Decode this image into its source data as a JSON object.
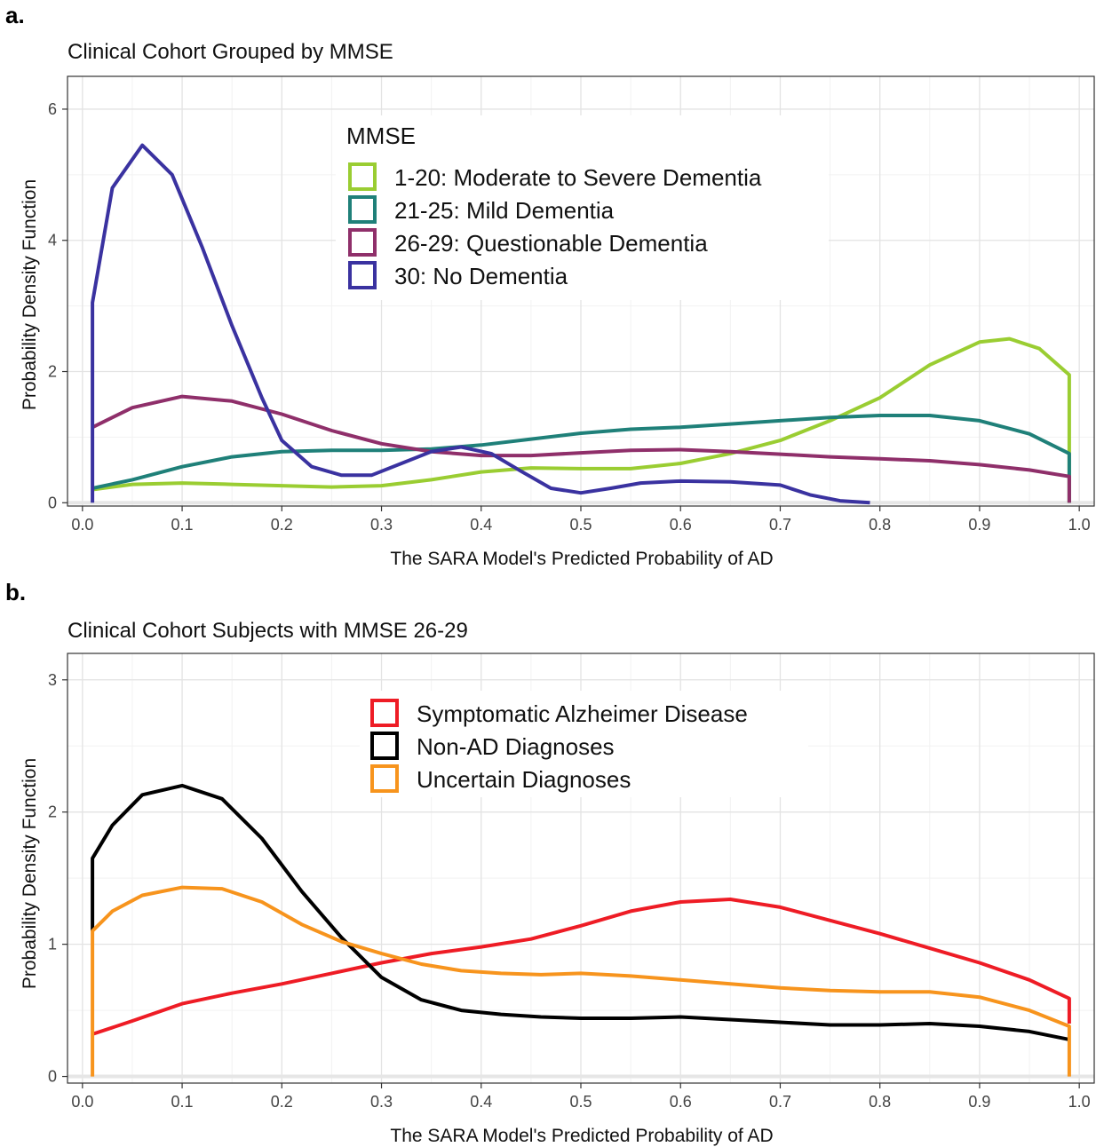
{
  "panels": [
    {
      "letter": "a.",
      "chart_data": {
        "type": "line",
        "title": "Clinical Cohort Grouped by MMSE",
        "xlabel": "The SARA Model's Predicted Probability of AD",
        "ylabel": "Probability Density Function",
        "xlim": [
          0.0,
          1.0
        ],
        "ylim": [
          0,
          6.5
        ],
        "x_ticks": [
          "0.0",
          "0.1",
          "0.2",
          "0.3",
          "0.4",
          "0.5",
          "0.6",
          "0.7",
          "0.8",
          "0.9",
          "1.0"
        ],
        "y_ticks": [
          "0",
          "2",
          "4",
          "6"
        ],
        "grid": true,
        "legend_title": "MMSE",
        "legend_position": "top-center",
        "series": [
          {
            "name": "1-20: Moderate to Severe Dementia",
            "color": "#9acd32",
            "x": [
              0.01,
              0.05,
              0.1,
              0.15,
              0.2,
              0.25,
              0.3,
              0.35,
              0.4,
              0.45,
              0.5,
              0.55,
              0.6,
              0.65,
              0.7,
              0.75,
              0.8,
              0.85,
              0.9,
              0.93,
              0.96,
              0.99,
              0.99
            ],
            "y": [
              0.2,
              0.28,
              0.3,
              0.28,
              0.26,
              0.24,
              0.26,
              0.35,
              0.47,
              0.53,
              0.52,
              0.52,
              0.6,
              0.75,
              0.95,
              1.25,
              1.6,
              2.1,
              2.45,
              2.5,
              2.35,
              1.95,
              0
            ]
          },
          {
            "name": "21-25: Mild Dementia",
            "color": "#1f8079",
            "x": [
              0.01,
              0.05,
              0.1,
              0.15,
              0.2,
              0.25,
              0.3,
              0.35,
              0.4,
              0.45,
              0.5,
              0.55,
              0.6,
              0.65,
              0.7,
              0.75,
              0.8,
              0.85,
              0.9,
              0.95,
              0.99,
              0.99
            ],
            "y": [
              0.22,
              0.35,
              0.55,
              0.7,
              0.78,
              0.8,
              0.8,
              0.82,
              0.88,
              0.97,
              1.06,
              1.12,
              1.15,
              1.2,
              1.25,
              1.3,
              1.33,
              1.33,
              1.25,
              1.05,
              0.75,
              0
            ]
          },
          {
            "name": "26-29: Questionable Dementia",
            "color": "#8f2f6a",
            "x": [
              0.01,
              0.05,
              0.1,
              0.15,
              0.2,
              0.25,
              0.3,
              0.35,
              0.4,
              0.45,
              0.5,
              0.55,
              0.6,
              0.65,
              0.7,
              0.75,
              0.8,
              0.85,
              0.9,
              0.95,
              0.99,
              0.99
            ],
            "y": [
              1.15,
              1.45,
              1.62,
              1.55,
              1.35,
              1.1,
              0.9,
              0.78,
              0.72,
              0.72,
              0.76,
              0.8,
              0.81,
              0.78,
              0.74,
              0.7,
              0.67,
              0.64,
              0.58,
              0.5,
              0.4,
              0
            ]
          },
          {
            "name": "30: No Dementia",
            "color": "#3a32a0",
            "x": [
              0.01,
              0.01,
              0.03,
              0.06,
              0.09,
              0.12,
              0.15,
              0.18,
              0.2,
              0.23,
              0.26,
              0.29,
              0.32,
              0.35,
              0.38,
              0.41,
              0.44,
              0.47,
              0.5,
              0.53,
              0.56,
              0.6,
              0.65,
              0.7,
              0.73,
              0.76,
              0.79
            ],
            "y": [
              0,
              3.05,
              4.8,
              5.45,
              5.0,
              3.9,
              2.7,
              1.6,
              0.95,
              0.55,
              0.42,
              0.42,
              0.6,
              0.78,
              0.85,
              0.75,
              0.48,
              0.22,
              0.15,
              0.22,
              0.3,
              0.33,
              0.32,
              0.27,
              0.12,
              0.03,
              0.0
            ]
          }
        ]
      }
    },
    {
      "letter": "b.",
      "chart_data": {
        "type": "line",
        "title": "Clinical Cohort Subjects with MMSE 26-29",
        "xlabel": "The SARA Model's Predicted Probability of AD",
        "ylabel": "Probability Density Function",
        "xlim": [
          0.0,
          1.0
        ],
        "ylim": [
          0,
          3.2
        ],
        "x_ticks": [
          "0.0",
          "0.1",
          "0.2",
          "0.3",
          "0.4",
          "0.5",
          "0.6",
          "0.7",
          "0.8",
          "0.9",
          "1.0"
        ],
        "y_ticks": [
          "0",
          "1",
          "2",
          "3"
        ],
        "grid": true,
        "legend_title": "",
        "legend_position": "top-center",
        "series": [
          {
            "name": "Symptomatic Alzheimer Disease",
            "color": "#ee1c25",
            "x": [
              0.01,
              0.05,
              0.1,
              0.15,
              0.2,
              0.25,
              0.3,
              0.35,
              0.4,
              0.45,
              0.5,
              0.55,
              0.6,
              0.65,
              0.7,
              0.75,
              0.8,
              0.85,
              0.9,
              0.95,
              0.99,
              0.99
            ],
            "y": [
              0.32,
              0.42,
              0.55,
              0.63,
              0.7,
              0.78,
              0.86,
              0.93,
              0.98,
              1.04,
              1.14,
              1.25,
              1.32,
              1.34,
              1.28,
              1.18,
              1.08,
              0.97,
              0.86,
              0.73,
              0.59,
              0.4
            ]
          },
          {
            "name": "Non-AD Diagnoses",
            "color": "#000000",
            "x": [
              0.01,
              0.01,
              0.03,
              0.06,
              0.1,
              0.14,
              0.18,
              0.22,
              0.26,
              0.3,
              0.34,
              0.38,
              0.42,
              0.46,
              0.5,
              0.55,
              0.6,
              0.65,
              0.7,
              0.75,
              0.8,
              0.85,
              0.9,
              0.95,
              0.99
            ],
            "y": [
              1.1,
              1.65,
              1.9,
              2.13,
              2.2,
              2.1,
              1.8,
              1.4,
              1.05,
              0.75,
              0.58,
              0.5,
              0.47,
              0.45,
              0.44,
              0.44,
              0.45,
              0.43,
              0.41,
              0.39,
              0.39,
              0.4,
              0.38,
              0.34,
              0.28
            ]
          },
          {
            "name": "Uncertain Diagnoses",
            "color": "#f7941d",
            "x": [
              0.01,
              0.01,
              0.03,
              0.06,
              0.1,
              0.14,
              0.18,
              0.22,
              0.26,
              0.3,
              0.34,
              0.38,
              0.42,
              0.46,
              0.5,
              0.55,
              0.6,
              0.65,
              0.7,
              0.75,
              0.8,
              0.85,
              0.9,
              0.95,
              0.99,
              0.99
            ],
            "y": [
              0,
              1.1,
              1.25,
              1.37,
              1.43,
              1.42,
              1.32,
              1.15,
              1.02,
              0.93,
              0.85,
              0.8,
              0.78,
              0.77,
              0.78,
              0.76,
              0.73,
              0.7,
              0.67,
              0.65,
              0.64,
              0.64,
              0.6,
              0.5,
              0.38,
              0
            ]
          }
        ]
      }
    }
  ]
}
